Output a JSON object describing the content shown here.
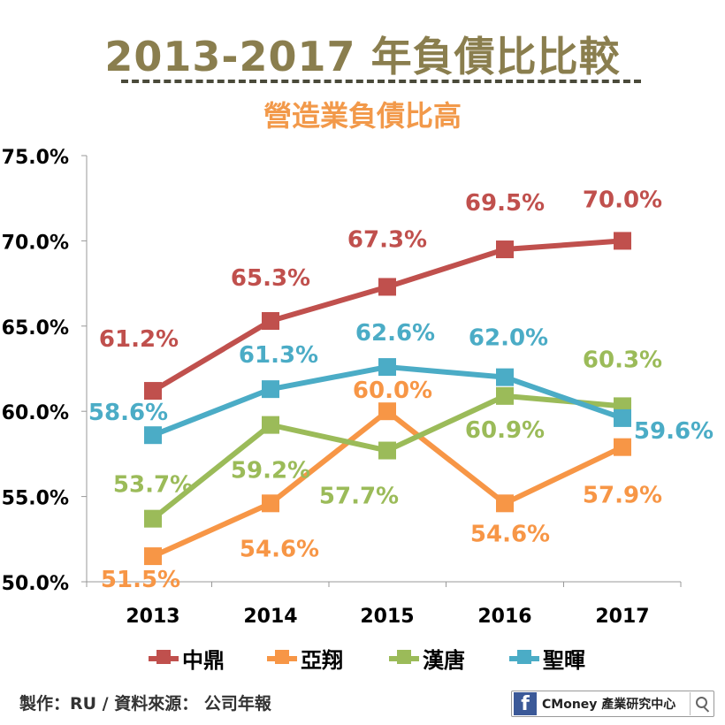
{
  "title": "2013-2017 年負債比比較",
  "subtitle": "營造業負債比高",
  "footer": {
    "credit": "製作：RU  / 資料來源： 公司年報",
    "badge_text": "CMoney 產業研究中心",
    "badge_icon": "facebook-icon",
    "search_icon": "search-icon"
  },
  "chart_data": {
    "type": "line",
    "categories": [
      "2013",
      "2014",
      "2015",
      "2016",
      "2017"
    ],
    "ylim": [
      50,
      75
    ],
    "yticks": [
      "50.0%",
      "55.0%",
      "60.0%",
      "65.0%",
      "70.0%",
      "75.0%"
    ],
    "grid": false,
    "legend_position": "bottom",
    "series": [
      {
        "name": "中鼎",
        "color": "#c0504d",
        "values": [
          61.2,
          65.3,
          67.3,
          69.5,
          70.0
        ],
        "labels": [
          "61.2%",
          "65.3%",
          "67.3%",
          "69.5%",
          "70.0%"
        ]
      },
      {
        "name": "亞翔",
        "color": "#f79646",
        "values": [
          51.5,
          54.6,
          60.0,
          54.6,
          57.9
        ],
        "labels": [
          "51.5%",
          "54.6%",
          "60.0%",
          "54.6%",
          "57.9%"
        ]
      },
      {
        "name": "漢唐",
        "color": "#9bbb59",
        "values": [
          53.7,
          59.2,
          57.7,
          60.9,
          60.3
        ],
        "labels": [
          "53.7%",
          "59.2%",
          "57.7%",
          "60.9%",
          "60.3%"
        ]
      },
      {
        "name": "聖暉",
        "color": "#4bacc6",
        "values": [
          58.6,
          61.3,
          62.6,
          62.0,
          59.6
        ],
        "labels": [
          "58.6%",
          "61.3%",
          "62.6%",
          "62.0%",
          "59.6%"
        ]
      }
    ]
  }
}
